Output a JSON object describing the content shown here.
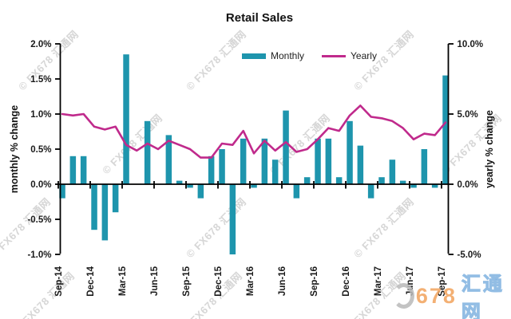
{
  "title": "Retail Sales",
  "legend": [
    {
      "label": "Monthly",
      "color": "#1e95ad",
      "type": "bar"
    },
    {
      "label": "Yearly",
      "color": "#c02a8c",
      "type": "line"
    }
  ],
  "watermark": {
    "text": "© FX678 汇通网",
    "logo_number": "678",
    "logo_text": "汇通网"
  },
  "chart_data": {
    "type": "bar",
    "subtype": "bar+line dual axis",
    "title": "Retail Sales",
    "categories": [
      "Sep-14",
      "Oct-14",
      "Nov-14",
      "Dec-14",
      "Jan-15",
      "Feb-15",
      "Mar-15",
      "Apr-15",
      "May-15",
      "Jun-15",
      "Jul-15",
      "Aug-15",
      "Sep-15",
      "Oct-15",
      "Nov-15",
      "Dec-15",
      "Jan-16",
      "Feb-16",
      "Mar-16",
      "Apr-16",
      "May-16",
      "Jun-16",
      "Jul-16",
      "Aug-16",
      "Sep-16",
      "Oct-16",
      "Nov-16",
      "Dec-16",
      "Jan-17",
      "Feb-17",
      "Mar-17",
      "Apr-17",
      "May-17",
      "Jun-17",
      "Jul-17",
      "Aug-17",
      "Sep-17"
    ],
    "x_tick_labels": [
      "Sep-14",
      "Dec-14",
      "Mar-15",
      "Jun-15",
      "Sep-15",
      "Dec-15",
      "Mar-16",
      "Jun-16",
      "Sep-16",
      "Dec-16",
      "Mar-17",
      "Jun-17",
      "Sep-17"
    ],
    "series": [
      {
        "name": "Monthly",
        "type": "bar",
        "axis": "left",
        "color": "#1e95ad",
        "values": [
          -0.2,
          0.4,
          0.4,
          -0.65,
          -0.8,
          -0.4,
          1.85,
          0.0,
          0.9,
          0.0,
          0.7,
          0.05,
          -0.05,
          -0.2,
          0.4,
          0.5,
          -1.0,
          0.65,
          -0.05,
          0.65,
          0.35,
          1.05,
          -0.2,
          0.1,
          0.65,
          0.65,
          0.1,
          0.9,
          0.55,
          -0.2,
          0.1,
          0.35,
          0.05,
          -0.05,
          0.5,
          -0.05,
          1.55
        ]
      },
      {
        "name": "Yearly",
        "type": "line",
        "axis": "right",
        "color": "#c02a8c",
        "values": [
          5.0,
          4.9,
          5.0,
          4.1,
          3.9,
          4.1,
          2.8,
          2.4,
          2.9,
          2.5,
          3.1,
          2.8,
          2.5,
          1.9,
          1.9,
          2.9,
          2.8,
          3.8,
          2.2,
          3.1,
          2.4,
          3.0,
          2.3,
          2.5,
          3.2,
          4.0,
          3.8,
          4.9,
          5.6,
          4.8,
          4.7,
          4.5,
          4.0,
          3.2,
          3.6,
          3.5,
          4.4
        ]
      }
    ],
    "left_axis": {
      "label": "monthly % change",
      "min": -1.0,
      "max": 2.0,
      "ticks": [
        {
          "value": 2.0,
          "label": "2.0%"
        },
        {
          "value": 1.5,
          "label": "1.5%"
        },
        {
          "value": 1.0,
          "label": "1.0%"
        },
        {
          "value": 0.5,
          "label": "0.5%"
        },
        {
          "value": 0.0,
          "label": "0.0%"
        },
        {
          "value": -0.5,
          "label": "-0.5%"
        },
        {
          "value": -1.0,
          "label": "-1.0%"
        }
      ]
    },
    "right_axis": {
      "label": "yearly % change",
      "min": -5.0,
      "max": 10.0,
      "ticks": [
        {
          "value": 10.0,
          "label": "10.0%"
        },
        {
          "value": 5.0,
          "label": "5.0%"
        },
        {
          "value": 0.0,
          "label": "0.0%"
        },
        {
          "value": -5.0,
          "label": "-5.0%"
        }
      ]
    },
    "grid": false,
    "legend_position": "top"
  }
}
